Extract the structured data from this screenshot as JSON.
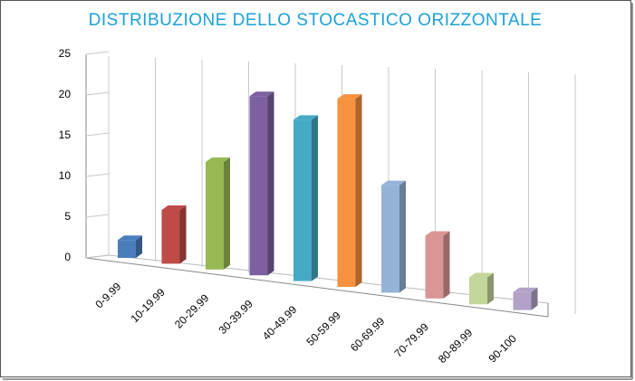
{
  "chart_data": {
    "type": "bar",
    "title": "DISTRIBUZIONE  DELLO STOCASTICO  ORIZZONTALE",
    "categories": [
      "0-9.99",
      "10-19.99",
      "20-29.99",
      "30-39.99",
      "40-49.99",
      "50-59.99",
      "60-69.99",
      "70-79.99",
      "80-89.99",
      "90-100"
    ],
    "values": [
      2,
      6,
      12,
      20,
      18,
      21,
      12,
      7,
      3,
      2
    ],
    "colors": [
      "#4a7ebb",
      "#be4b48",
      "#98b954",
      "#7d60a0",
      "#46aac5",
      "#f69240",
      "#95b3d7",
      "#d99694",
      "#c3d69b",
      "#b3a2c7"
    ],
    "ylim": [
      0,
      25
    ],
    "yticks": [
      0,
      5,
      10,
      15,
      20,
      25
    ],
    "grid": true
  }
}
